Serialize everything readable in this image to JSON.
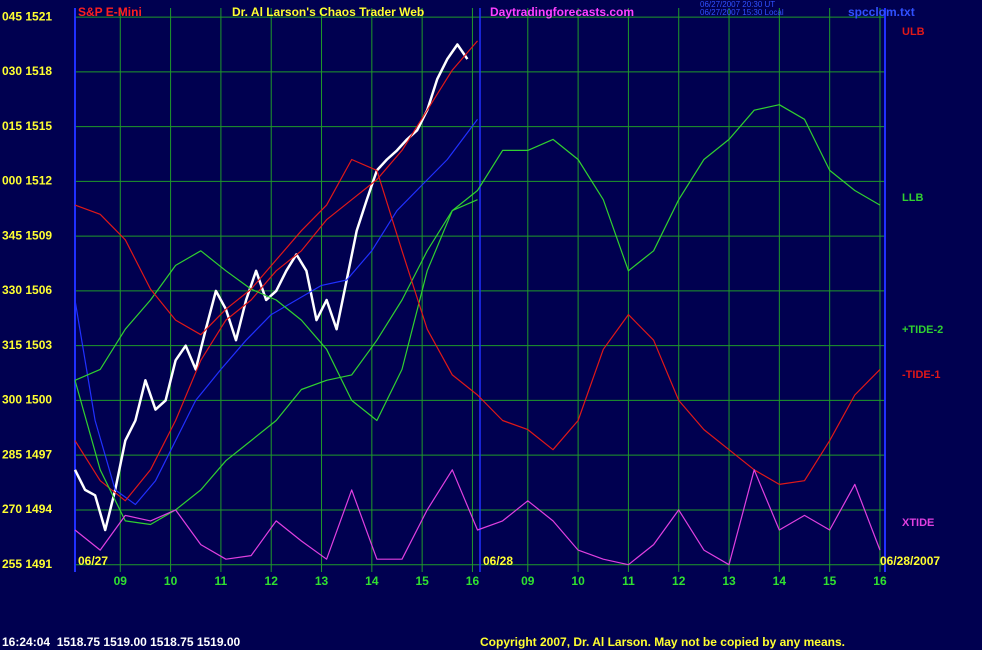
{
  "chart_data": {
    "type": "line",
    "symbol": "S&P E-Mini",
    "title": "Dr. Al Larson's Chaos Trader Web",
    "site": "Daytradingforecasts.com",
    "timestamps": [
      "06/27/2007 20:30 UT",
      "06/27/2007 15:30 Local"
    ],
    "file": "spcclom.txt",
    "date_labels": [
      "06/27",
      "06/28",
      "06/28/2007"
    ],
    "status": "16:24:04  1518.75 1519.00 1518.75 1519.00",
    "copyright": "Copyright 2007, Dr. Al Larson. May not be copied by any means.",
    "xlim": [
      8.1,
      24.2
    ],
    "ylim": [
      1490.6,
      1521.5
    ],
    "grid": true,
    "xticks": [
      {
        "value": 9,
        "label": "09"
      },
      10,
      11,
      12,
      13,
      14,
      15,
      16,
      {
        "value": 17.1,
        "label": "09"
      },
      {
        "value": 18.1,
        "label": "10"
      },
      {
        "value": 19.1,
        "label": "11"
      },
      {
        "value": 20.1,
        "label": "12"
      },
      {
        "value": 21.1,
        "label": "13"
      },
      {
        "value": 22.1,
        "label": "14"
      },
      {
        "value": 23.1,
        "label": "15"
      },
      {
        "value": 24.1,
        "label": "16"
      }
    ],
    "yticks": [
      {
        "value": 1521,
        "label": "045 1521"
      },
      {
        "value": 1518,
        "label": "030 1518"
      },
      {
        "value": 1515,
        "label": "015 1515"
      },
      {
        "value": 1512,
        "label": "000 1512"
      },
      {
        "value": 1509,
        "label": "345 1509"
      },
      {
        "value": 1506,
        "label": "330 1506"
      },
      {
        "value": 1503,
        "label": "315 1503"
      },
      {
        "value": 1500,
        "label": "300 1500"
      },
      {
        "value": 1497,
        "label": "285 1497"
      },
      {
        "value": 1494,
        "label": "270 1494"
      },
      {
        "value": 1491,
        "label": "255 1491"
      }
    ],
    "x": [
      8.1,
      8.6,
      9.1,
      9.6,
      10.1,
      10.6,
      11.1,
      11.6,
      12.1,
      12.6,
      13.1,
      13.6,
      14.1,
      14.6,
      15.1,
      15.6,
      16.1,
      16.6,
      17.1,
      17.6,
      18.1,
      18.6,
      19.1,
      19.6,
      20.1,
      20.6,
      21.1,
      21.6,
      22.1,
      22.6,
      23.1,
      23.6,
      24.1
    ],
    "series": [
      {
        "color": "#ffffff",
        "x": [
          8.1,
          8.3,
          8.5,
          8.7,
          8.9,
          9.1,
          9.3,
          9.5,
          9.7,
          9.9,
          10.1,
          10.3,
          10.5,
          10.7,
          10.9,
          11.1,
          11.3,
          11.5,
          11.7,
          11.9,
          12.1,
          12.3,
          12.5,
          12.7,
          12.9,
          13.1,
          13.3,
          13.5,
          13.7,
          13.9,
          14.1,
          14.3,
          14.5,
          14.7,
          14.9,
          15.1,
          15.3,
          15.5,
          15.7,
          15.9
        ],
        "values": [
          1496.2,
          1495.1,
          1494.8,
          1492.9,
          1495.1,
          1497.8,
          1498.9,
          1501.1,
          1499.5,
          1500.0,
          1502.2,
          1503.0,
          1501.7,
          1503.9,
          1506.0,
          1505.0,
          1503.3,
          1505.5,
          1507.1,
          1505.5,
          1506.0,
          1507.1,
          1508.0,
          1507.1,
          1504.4,
          1505.5,
          1503.9,
          1506.6,
          1509.3,
          1511.0,
          1512.6,
          1513.2,
          1513.7,
          1514.3,
          1514.8,
          1515.9,
          1517.6,
          1518.7,
          1519.5,
          1518.7
        ]
      },
      {
        "color": "#2030ff",
        "x": [
          8.1,
          8.5,
          8.9,
          9.3,
          9.7,
          10.1,
          10.5,
          11.0,
          11.5,
          12.0,
          12.5,
          13.0,
          13.5,
          14.0,
          14.5,
          15.0,
          15.5,
          16.1
        ],
        "values": [
          1505.5,
          1498.9,
          1495.1,
          1494.3,
          1495.6,
          1497.8,
          1500.0,
          1501.7,
          1503.3,
          1504.7,
          1505.5,
          1506.3,
          1506.6,
          1508.2,
          1510.4,
          1511.8,
          1513.2,
          1515.4
        ]
      },
      {
        "name": "ULB",
        "color": "#e01818",
        "values": [
          1497.8,
          1495.6,
          1494.5,
          1496.2,
          1498.9,
          1502.2,
          1504.4,
          1505.5,
          1507.1,
          1508.2,
          1509.9,
          1511.0,
          1512.1,
          1513.7,
          1515.9,
          1518.1,
          1519.7,
          null,
          null,
          null,
          null,
          null,
          null,
          null,
          null,
          null,
          null,
          null,
          null,
          null,
          null,
          null,
          null
        ]
      },
      {
        "name": "LLB",
        "color": "#30d030",
        "values": [
          1501.1,
          1501.7,
          1503.9,
          1505.5,
          1507.4,
          1508.2,
          1507.1,
          1506.1,
          1505.5,
          1504.4,
          1502.8,
          1500.0,
          1498.9,
          1501.7,
          1507.1,
          1510.4,
          1511.5,
          1513.7,
          1513.7,
          1514.3,
          1513.2,
          1511.0,
          1507.1,
          1508.2,
          1511.0,
          1513.2,
          1514.3,
          1515.9,
          1516.2,
          1515.4,
          1512.6,
          1511.5,
          1510.7
        ]
      },
      {
        "name": "+TIDE-2",
        "color": "#30d030",
        "values": [
          1501.1,
          1496.2,
          1493.4,
          1493.2,
          1494.0,
          1495.1,
          1496.7,
          1497.8,
          1498.9,
          1500.6,
          1501.1,
          1501.4,
          1503.3,
          1505.5,
          1508.2,
          1510.4,
          1511.0,
          null,
          null,
          null,
          null,
          null,
          null,
          null,
          null,
          null,
          null,
          null,
          null,
          null,
          null,
          null,
          null
        ]
      },
      {
        "name": "-TIDE-1",
        "color": "#e01818",
        "values": [
          1510.7,
          1510.2,
          1508.8,
          1506.1,
          1504.4,
          1503.6,
          1505.0,
          1506.1,
          1507.7,
          1509.3,
          1510.7,
          1513.2,
          1512.6,
          1508.2,
          1503.9,
          1501.4,
          1500.3,
          1498.9,
          1498.4,
          1497.3,
          1498.9,
          1502.8,
          1504.7,
          1503.3,
          1500.0,
          1498.4,
          1497.3,
          1496.2,
          1495.4,
          1495.6,
          1497.8,
          1500.3,
          1501.7
        ]
      },
      {
        "name": "XTIDE",
        "color": "#e040e0",
        "values": [
          1492.9,
          1491.8,
          1493.7,
          1493.4,
          1494.0,
          1492.1,
          1491.3,
          1491.5,
          1493.4,
          1492.3,
          1491.3,
          1495.1,
          1491.3,
          1491.3,
          1494.0,
          1496.2,
          1492.9,
          1493.4,
          1494.5,
          1493.4,
          1491.8,
          1491.3,
          1491.0,
          1492.1,
          1494.0,
          1491.8,
          1491.0,
          1496.2,
          1492.9,
          1493.7,
          1492.9,
          1495.4,
          1491.8
        ]
      }
    ]
  }
}
